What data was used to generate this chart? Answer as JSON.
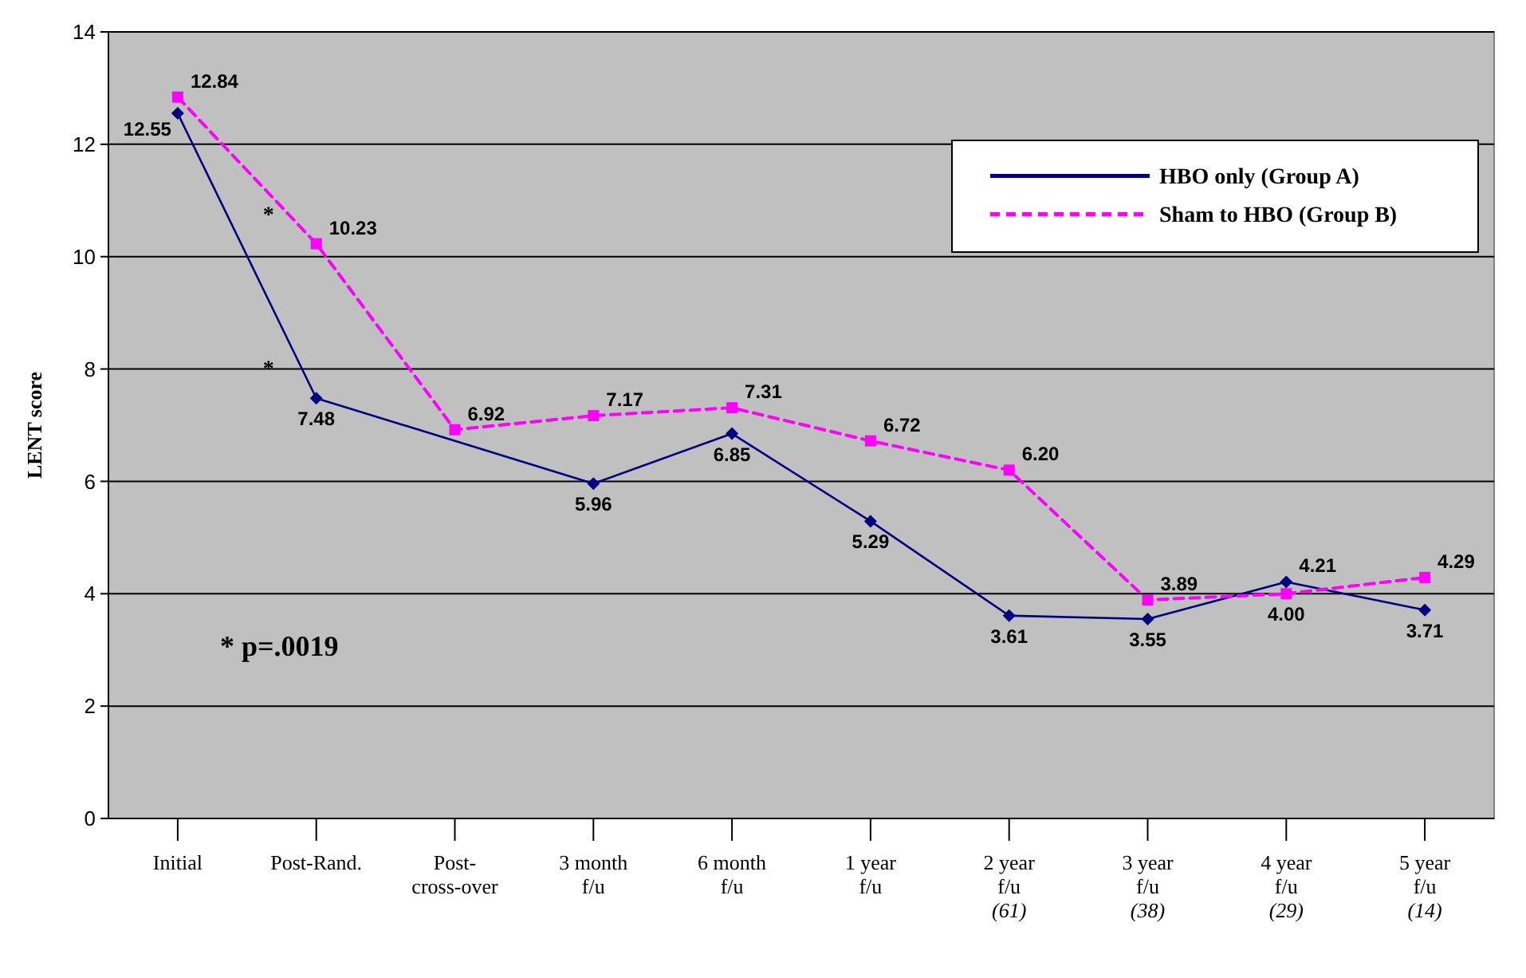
{
  "chart_data": {
    "type": "line",
    "ylabel": "LENT score",
    "categories": [
      "Initial",
      "Post-Rand.",
      "Post-\ncross-over",
      "3 month\nf/u",
      "6 month\nf/u",
      "1 year\nf/u",
      "2 year\nf/u\n(61)",
      "3 year\nf/u\n(38)",
      "4 year\nf/u\n(29)",
      "5 year\nf/u\n(14)"
    ],
    "series": [
      {
        "name": "HBO only (Group A)",
        "color": "#000080",
        "marker": "diamond",
        "line_style": "solid",
        "values": [
          12.55,
          7.48,
          null,
          5.96,
          6.85,
          5.29,
          3.61,
          3.55,
          4.21,
          3.71
        ],
        "value_labels": [
          "12.55",
          "7.48",
          null,
          "5.96",
          "6.85",
          "5.29",
          "3.61",
          "3.55",
          "4.21",
          "3.71"
        ]
      },
      {
        "name": "Sham to HBO (Group B)",
        "color": "#ff00ff",
        "marker": "square",
        "line_style": "dashed",
        "values": [
          12.84,
          10.23,
          6.92,
          7.17,
          7.31,
          6.72,
          6.2,
          3.89,
          4.0,
          4.29
        ],
        "value_labels": [
          "12.84",
          "10.23",
          "6.92",
          "7.17",
          "7.31",
          "6.72",
          "6.20",
          "3.89",
          "4.00",
          "4.29"
        ]
      }
    ],
    "ylim": [
      0,
      14
    ],
    "yticks": [
      0,
      2,
      4,
      6,
      8,
      10,
      12,
      14
    ],
    "grid": "y",
    "legend": "top right",
    "annotations": [
      {
        "text": "*",
        "x": "Post-Rand.",
        "y": 10.23
      },
      {
        "text": "*",
        "x": "Post-Rand.",
        "y": 7.48
      },
      "* p=.0019"
    ]
  }
}
